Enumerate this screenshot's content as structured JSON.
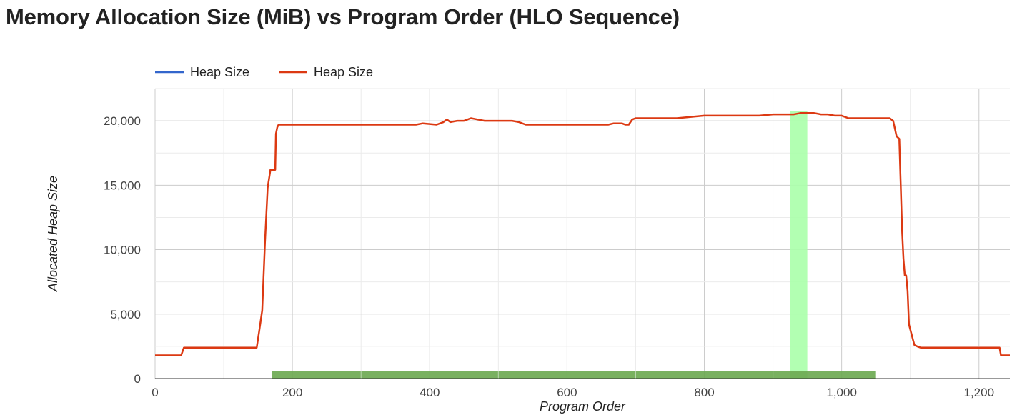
{
  "title": "Memory Allocation Size (MiB) vs Program Order (HLO Sequence)",
  "chart_data": {
    "type": "line",
    "title": "Memory Allocation Size (MiB) vs Program Order (HLO Sequence)",
    "xlabel": "Program Order",
    "ylabel": "Allocated Heap Size",
    "xlim": [
      0,
      1245
    ],
    "ylim": [
      0,
      22500
    ],
    "x_ticks": [
      0,
      200,
      400,
      600,
      800,
      1000,
      1200
    ],
    "x_tick_labels": [
      "0",
      "200",
      "400",
      "600",
      "800",
      "1,000",
      "1,200"
    ],
    "y_ticks": [
      0,
      5000,
      10000,
      15000,
      20000
    ],
    "y_tick_labels": [
      "0",
      "5,000",
      "10,000",
      "15,000",
      "20,000"
    ],
    "grid": true,
    "legend_position": "top",
    "legend": [
      {
        "name": "Heap Size",
        "color": "#3366cc"
      },
      {
        "name": "Heap Size",
        "color": "#dc3912"
      }
    ],
    "highlights": [
      {
        "type": "vertical-band",
        "x_start": 925,
        "x_end": 950,
        "color": "#aaffaa"
      },
      {
        "type": "horizontal-bar",
        "x_start": 170,
        "x_end": 1050,
        "y_start": 0,
        "y_end": 600,
        "color": "#6aa84f"
      }
    ],
    "series": [
      {
        "name": "Heap Size",
        "color": "#3366cc",
        "x": [],
        "y": []
      },
      {
        "name": "Heap Size",
        "color": "#dc3912",
        "x": [
          0,
          38,
          42,
          100,
          148,
          152,
          156,
          160,
          164,
          168,
          170,
          175,
          176,
          178,
          180,
          200,
          300,
          380,
          390,
          410,
          420,
          425,
          430,
          440,
          450,
          460,
          470,
          480,
          500,
          520,
          530,
          540,
          550,
          600,
          620,
          640,
          660,
          668,
          680,
          685,
          690,
          695,
          700,
          720,
          760,
          800,
          840,
          880,
          900,
          910,
          920,
          930,
          940,
          950,
          960,
          970,
          980,
          990,
          1000,
          1010,
          1020,
          1040,
          1060,
          1070,
          1075,
          1080,
          1082,
          1084,
          1086,
          1088,
          1090,
          1092,
          1094,
          1096,
          1098,
          1100,
          1102,
          1104,
          1106,
          1110,
          1115,
          1125,
          1160,
          1200,
          1230,
          1232,
          1245
        ],
        "y": [
          1800,
          1800,
          2400,
          2400,
          2400,
          3800,
          5300,
          10500,
          14800,
          16200,
          16200,
          16200,
          19000,
          19500,
          19700,
          19700,
          19700,
          19700,
          19800,
          19700,
          19900,
          20100,
          19900,
          20000,
          20000,
          20200,
          20100,
          20000,
          20000,
          20000,
          19900,
          19700,
          19700,
          19700,
          19700,
          19700,
          19700,
          19800,
          19800,
          19700,
          19700,
          20100,
          20200,
          20200,
          20200,
          20400,
          20400,
          20400,
          20500,
          20500,
          20500,
          20500,
          20600,
          20600,
          20600,
          20500,
          20500,
          20400,
          20400,
          20200,
          20200,
          20200,
          20200,
          20200,
          20000,
          18800,
          18700,
          18600,
          15000,
          11500,
          9300,
          8000,
          8000,
          6800,
          4200,
          3800,
          3400,
          3000,
          2600,
          2500,
          2400,
          2400,
          2400,
          2400,
          2400,
          1800,
          1800
        ]
      }
    ]
  }
}
